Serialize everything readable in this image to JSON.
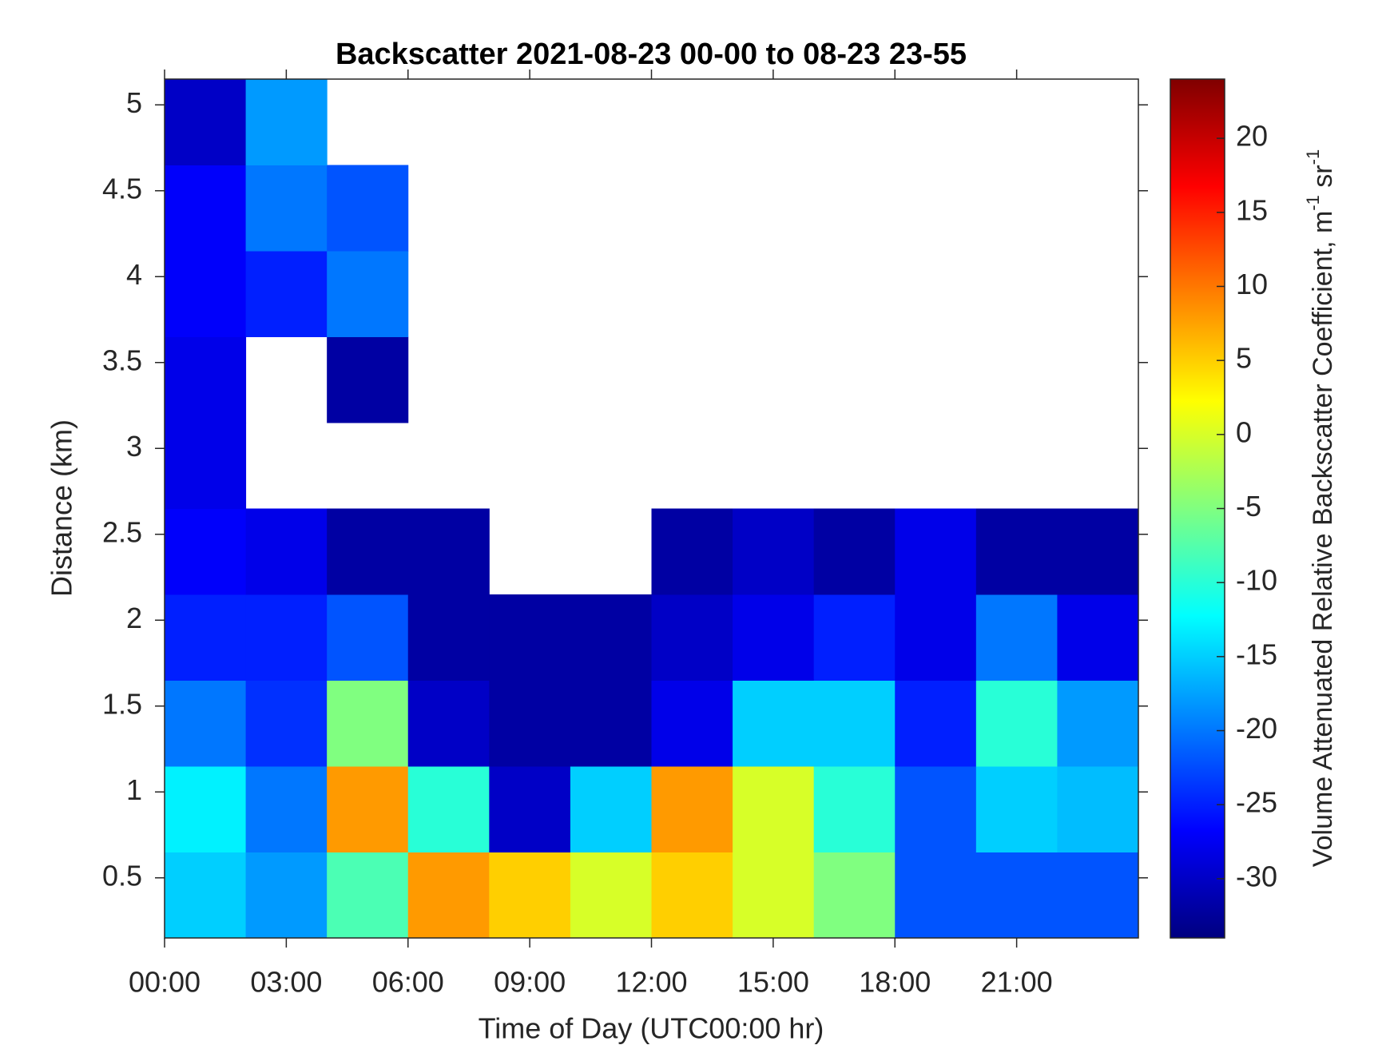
{
  "chart_data": {
    "type": "heatmap",
    "title": "Backscatter 2021-08-23 00-00 to 08-23 23-55",
    "x_label": "Time of Day (UTC00:00 hr)",
    "y_label": "Distance (km)",
    "colorbar_label": [
      "Volume Attenuated Relative Backscatter Coefficient, m",
      "-1",
      " sr",
      "-1"
    ],
    "colormap": "jet",
    "x_edges": [
      0,
      2,
      4,
      6,
      8,
      10,
      12,
      14,
      16,
      18,
      20,
      22,
      24
    ],
    "y_edges": [
      0.15,
      0.65,
      1.15,
      1.65,
      2.15,
      2.65,
      3.15,
      3.65,
      4.15,
      4.65,
      5.15
    ],
    "z": [
      [
        -15,
        -18,
        -8,
        8,
        5,
        0,
        5,
        0,
        -5,
        -22,
        -22,
        -22
      ],
      [
        -13,
        -20,
        8,
        -10,
        -30,
        -15,
        8,
        0,
        -10,
        -22,
        -15,
        -16
      ],
      [
        -20,
        -24,
        -5,
        -30,
        -32,
        -32,
        -28,
        -15,
        -15,
        -25,
        -10,
        -18
      ],
      [
        -25,
        -25,
        -22,
        -32,
        -32,
        -32,
        -30,
        -28,
        -25,
        -28,
        -20,
        -28
      ],
      [
        -27,
        -28,
        -32,
        -32,
        null,
        null,
        -32,
        -30,
        -32,
        -28,
        -32,
        -32
      ],
      [
        -28,
        null,
        null,
        null,
        null,
        null,
        null,
        null,
        null,
        null,
        null,
        null
      ],
      [
        -28,
        null,
        -32,
        null,
        null,
        null,
        null,
        null,
        null,
        null,
        null,
        null
      ],
      [
        -27,
        -25,
        -20,
        null,
        null,
        null,
        null,
        null,
        null,
        null,
        null,
        null
      ],
      [
        -27,
        -20,
        -22,
        null,
        null,
        null,
        null,
        null,
        null,
        null,
        null,
        null
      ],
      [
        -30,
        -18,
        null,
        null,
        null,
        null,
        null,
        null,
        null,
        null,
        null,
        null
      ]
    ],
    "xlim": [
      0,
      24
    ],
    "xticks": [
      {
        "value": 0,
        "label": "00:00"
      },
      {
        "value": 3,
        "label": "03:00"
      },
      {
        "value": 6,
        "label": "06:00"
      },
      {
        "value": 9,
        "label": "09:00"
      },
      {
        "value": 12,
        "label": "12:00"
      },
      {
        "value": 15,
        "label": "15:00"
      },
      {
        "value": 18,
        "label": "18:00"
      },
      {
        "value": 21,
        "label": "21:00"
      }
    ],
    "ylim": [
      0.15,
      5.15
    ],
    "yticks": [
      0.5,
      1,
      1.5,
      2,
      2.5,
      3,
      3.5,
      4,
      4.5,
      5
    ],
    "clim": [
      -34,
      24
    ],
    "cticks": [
      -30,
      -25,
      -20,
      -15,
      -10,
      -5,
      0,
      5,
      10,
      15,
      20
    ]
  }
}
